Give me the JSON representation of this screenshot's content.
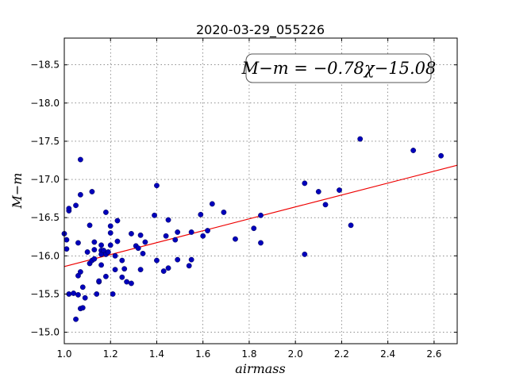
{
  "chart_data": {
    "type": "scatter",
    "title": "2020-03-29_055226",
    "xlabel": "airmass",
    "ylabel": "M−m",
    "xlim": [
      1.0,
      2.7
    ],
    "ylim": [
      -18.85,
      -14.85
    ],
    "y_inverted": true,
    "grid": true,
    "x_ticks": [
      1.0,
      1.2,
      1.4,
      1.6,
      1.8,
      2.0,
      2.2,
      2.4,
      2.6
    ],
    "x_tick_labels": [
      "1.0",
      "1.2",
      "1.4",
      "1.6",
      "1.8",
      "2.0",
      "2.2",
      "2.4",
      "2.6"
    ],
    "y_ticks": [
      -15.0,
      -15.5,
      -16.0,
      -16.5,
      -17.0,
      -17.5,
      -18.0,
      -18.5
    ],
    "y_tick_labels": [
      "−15.0",
      "−15.5",
      "−16.0",
      "−16.5",
      "−17.0",
      "−17.5",
      "−18.0",
      "−18.5"
    ],
    "annotation": "M−m = −0.78χ−15.08",
    "point_color": "#0000bb",
    "fit_color": "#ee0000",
    "fit": {
      "slope": -0.78,
      "intercept": -15.08
    },
    "points": [
      [
        1.0,
        -16.29
      ],
      [
        1.01,
        -16.21
      ],
      [
        1.01,
        -16.09
      ],
      [
        1.02,
        -15.5
      ],
      [
        1.02,
        -16.59
      ],
      [
        1.02,
        -16.62
      ],
      [
        1.04,
        -15.51
      ],
      [
        1.05,
        -15.17
      ],
      [
        1.05,
        -16.66
      ],
      [
        1.06,
        -16.17
      ],
      [
        1.06,
        -15.74
      ],
      [
        1.06,
        -15.49
      ],
      [
        1.07,
        -15.31
      ],
      [
        1.07,
        -15.79
      ],
      [
        1.07,
        -16.8
      ],
      [
        1.08,
        -15.32
      ],
      [
        1.08,
        -15.59
      ],
      [
        1.07,
        -17.26
      ],
      [
        1.09,
        -15.45
      ],
      [
        1.1,
        -16.05
      ],
      [
        1.11,
        -16.4
      ],
      [
        1.11,
        -15.9
      ],
      [
        1.12,
        -16.84
      ],
      [
        1.12,
        -15.94
      ],
      [
        1.13,
        -16.08
      ],
      [
        1.13,
        -16.18
      ],
      [
        1.13,
        -15.96
      ],
      [
        1.14,
        -15.5
      ],
      [
        1.15,
        -15.66
      ],
      [
        1.15,
        -15.67
      ],
      [
        1.16,
        -16.07
      ],
      [
        1.16,
        -16.14
      ],
      [
        1.16,
        -15.88
      ],
      [
        1.16,
        -16.02
      ],
      [
        1.17,
        -16.07
      ],
      [
        1.18,
        -16.02
      ],
      [
        1.18,
        -16.57
      ],
      [
        1.18,
        -15.73
      ],
      [
        1.19,
        -16.05
      ],
      [
        1.2,
        -16.14
      ],
      [
        1.2,
        -16.3
      ],
      [
        1.2,
        -16.39
      ],
      [
        1.21,
        -15.5
      ],
      [
        1.22,
        -16.0
      ],
      [
        1.22,
        -15.82
      ],
      [
        1.23,
        -16.19
      ],
      [
        1.23,
        -16.46
      ],
      [
        1.25,
        -15.94
      ],
      [
        1.25,
        -15.72
      ],
      [
        1.26,
        -15.83
      ],
      [
        1.27,
        -15.66
      ],
      [
        1.29,
        -15.64
      ],
      [
        1.29,
        -16.29
      ],
      [
        1.31,
        -16.13
      ],
      [
        1.32,
        -16.1
      ],
      [
        1.33,
        -15.82
      ],
      [
        1.33,
        -16.27
      ],
      [
        1.34,
        -16.03
      ],
      [
        1.35,
        -16.18
      ],
      [
        1.39,
        -16.53
      ],
      [
        1.4,
        -15.94
      ],
      [
        1.4,
        -16.92
      ],
      [
        1.43,
        -15.8
      ],
      [
        1.44,
        -16.26
      ],
      [
        1.45,
        -15.84
      ],
      [
        1.45,
        -16.47
      ],
      [
        1.48,
        -16.21
      ],
      [
        1.49,
        -15.95
      ],
      [
        1.49,
        -16.31
      ],
      [
        1.54,
        -15.87
      ],
      [
        1.55,
        -15.95
      ],
      [
        1.55,
        -16.31
      ],
      [
        1.59,
        -16.54
      ],
      [
        1.6,
        -16.26
      ],
      [
        1.62,
        -16.33
      ],
      [
        1.64,
        -16.68
      ],
      [
        1.69,
        -16.57
      ],
      [
        1.74,
        -16.22
      ],
      [
        1.82,
        -16.36
      ],
      [
        1.85,
        -16.17
      ],
      [
        1.85,
        -16.53
      ],
      [
        2.04,
        -16.02
      ],
      [
        2.04,
        -16.95
      ],
      [
        2.1,
        -16.84
      ],
      [
        2.13,
        -16.67
      ],
      [
        2.19,
        -16.86
      ],
      [
        2.24,
        -16.4
      ],
      [
        2.28,
        -17.53
      ],
      [
        2.51,
        -17.38
      ],
      [
        2.63,
        -17.31
      ]
    ]
  }
}
